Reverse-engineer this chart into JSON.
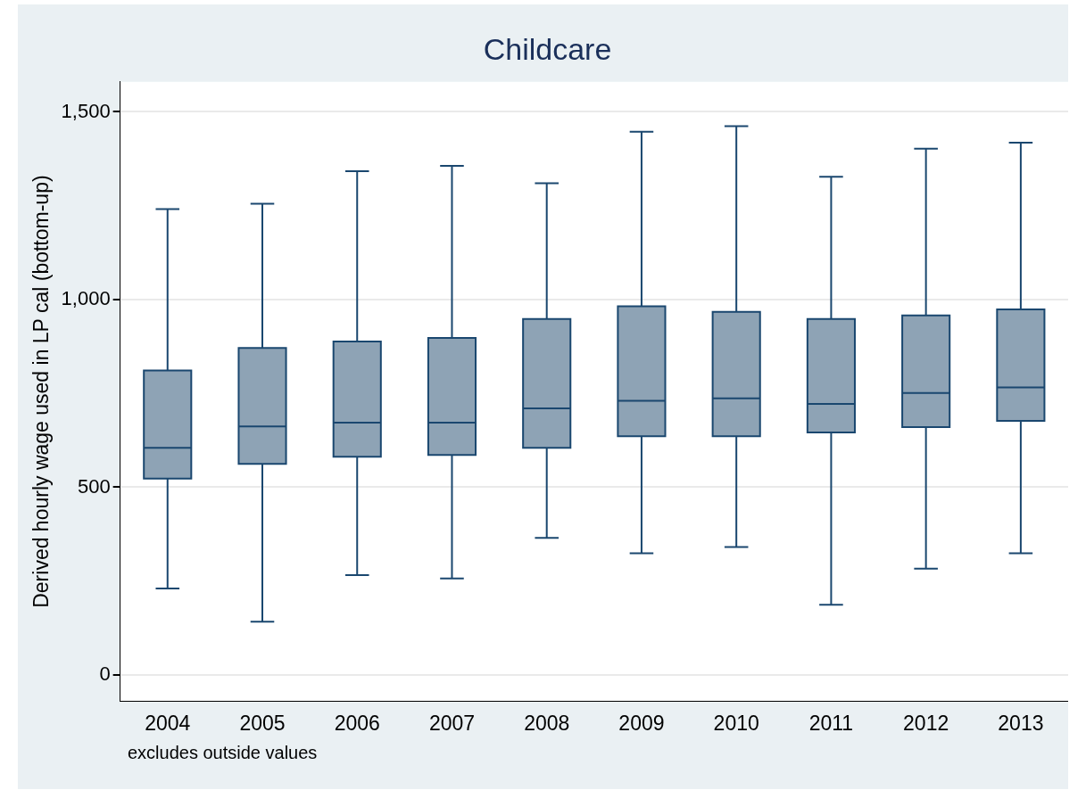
{
  "chart_data": {
    "type": "box",
    "title": "Childcare",
    "ylabel": "Derived hourly wage used in LP cal (bottom-up)",
    "categories": [
      "2004",
      "2005",
      "2006",
      "2007",
      "2008",
      "2009",
      "2010",
      "2011",
      "2012",
      "2013"
    ],
    "color": "#8ea3b5",
    "boxes": [
      {
        "low": 230,
        "q1": 523,
        "median": 605,
        "q3": 811,
        "high": 1241
      },
      {
        "low": 142,
        "q1": 562,
        "median": 662,
        "q3": 871,
        "high": 1255
      },
      {
        "low": 266,
        "q1": 581,
        "median": 672,
        "q3": 888,
        "high": 1342
      },
      {
        "low": 257,
        "q1": 586,
        "median": 672,
        "q3": 898,
        "high": 1356
      },
      {
        "low": 365,
        "q1": 605,
        "median": 710,
        "q3": 948,
        "high": 1310
      },
      {
        "low": 324,
        "q1": 636,
        "median": 730,
        "q3": 982,
        "high": 1447
      },
      {
        "low": 341,
        "q1": 636,
        "median": 737,
        "q3": 967,
        "high": 1462
      },
      {
        "low": 187,
        "q1": 646,
        "median": 722,
        "q3": 948,
        "high": 1327
      },
      {
        "low": 283,
        "q1": 660,
        "median": 751,
        "q3": 958,
        "high": 1402
      },
      {
        "low": 324,
        "q1": 677,
        "median": 766,
        "q3": 974,
        "high": 1418
      }
    ],
    "ylim": [
      -70,
      1580
    ],
    "yticks": [
      {
        "value": 0,
        "label": "0"
      },
      {
        "value": 500,
        "label": "500"
      },
      {
        "value": 1000,
        "label": "1,000"
      },
      {
        "value": 1500,
        "label": "1,500"
      }
    ],
    "grid": "y",
    "legend": false,
    "annotations": [
      "excludes outside values"
    ]
  }
}
